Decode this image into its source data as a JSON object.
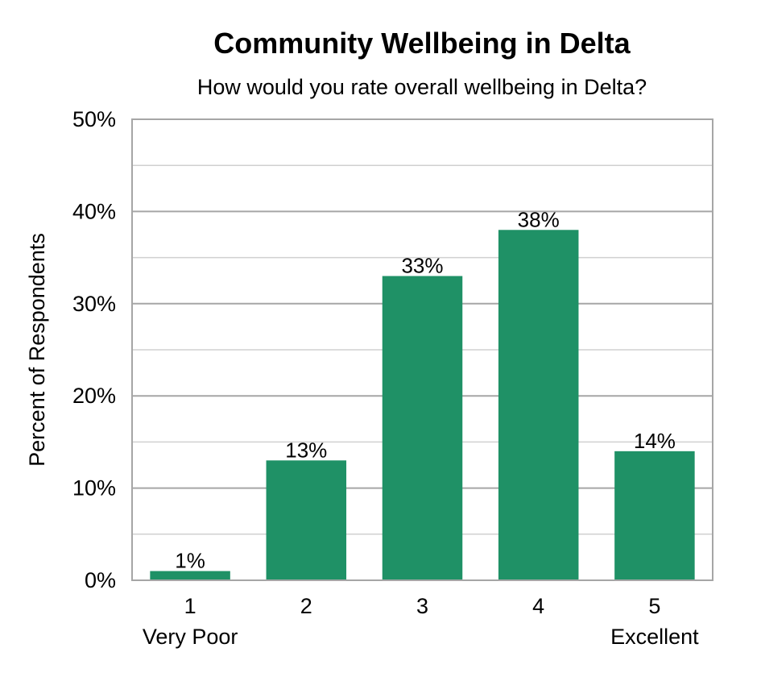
{
  "chart_data": {
    "type": "bar",
    "title": "Community Wellbeing in Delta",
    "subtitle": "How would you rate overall wellbeing in Delta?",
    "xlabel": "",
    "ylabel": "Percent of Respondents",
    "categories": [
      "1",
      "2",
      "3",
      "4",
      "5"
    ],
    "category_sublabels": [
      "Very Poor",
      "",
      "",
      "",
      "Excellent"
    ],
    "values": [
      1,
      13,
      33,
      38,
      14
    ],
    "data_labels": [
      "1%",
      "13%",
      "33%",
      "38%",
      "14%"
    ],
    "value_format": "percent",
    "ylim": [
      0,
      50
    ],
    "yticks": [
      0,
      10,
      20,
      30,
      40,
      50
    ],
    "ytick_labels": [
      "0%",
      "10%",
      "20%",
      "30%",
      "40%",
      "50%"
    ],
    "grid": true,
    "minor_grid": true,
    "legend": "none",
    "colors": {
      "bar": "#1f9166",
      "major_grid": "#a6a6a6",
      "minor_grid": "#d0d0d0",
      "frame": "#a6a6a6"
    }
  }
}
